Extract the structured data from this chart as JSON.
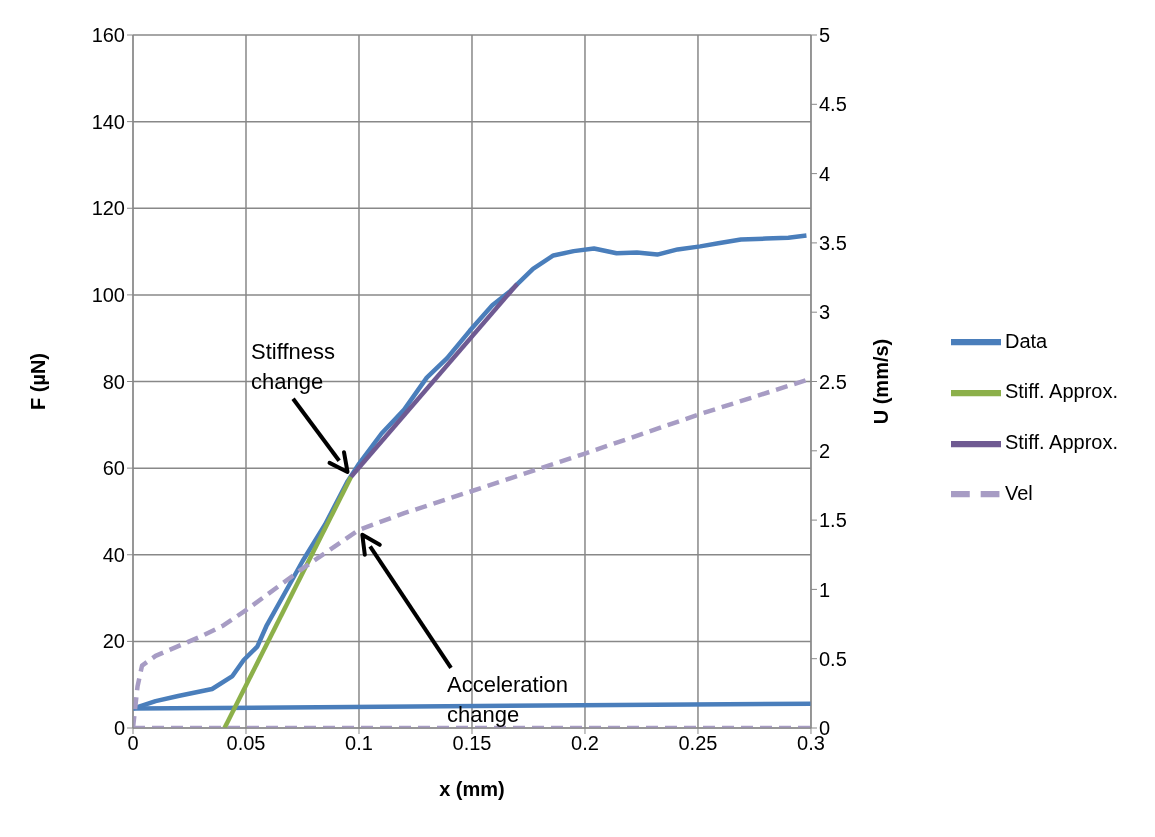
{
  "chart_data": {
    "type": "line",
    "xlabel": "x (mm)",
    "ylabel": "F (µN)",
    "y2label": "U (mm/s)",
    "xlim": [
      0,
      0.3
    ],
    "xticks": [
      0,
      0.05,
      0.1,
      0.15,
      0.2,
      0.25,
      0.3
    ],
    "ylim": [
      0,
      160
    ],
    "yticks": [
      0,
      20,
      40,
      60,
      80,
      100,
      120,
      140,
      160
    ],
    "y2lim": [
      0,
      5
    ],
    "y2ticks": [
      0,
      0.5,
      1,
      1.5,
      2,
      2.5,
      3,
      3.5,
      4,
      4.5,
      5
    ],
    "grid": true,
    "legend": "right",
    "marker": "none",
    "series": [
      {
        "name": "Data",
        "color": "#4a7ebb",
        "line_style": "solid",
        "x": [
          0,
          0.01,
          0.02,
          0.035,
          0.044,
          0.049,
          0.055,
          0.059,
          0.067,
          0.075,
          0.085,
          0.095,
          0.1,
          0.11,
          0.12,
          0.13,
          0.139,
          0.149,
          0.159,
          0.167,
          0.177,
          0.186,
          0.195,
          0.204,
          0.214,
          0.223,
          0.232,
          0.241,
          0.251,
          0.259,
          0.269,
          0.28,
          0.29,
          0.298
        ],
        "values": [
          4.5,
          6.2,
          7.4,
          9,
          12,
          15.7,
          18.8,
          23.5,
          31,
          38.5,
          47,
          57,
          61,
          68,
          73.5,
          80.9,
          85.4,
          91.7,
          97.6,
          100.9,
          106,
          109.1,
          110.1,
          110.7,
          109.6,
          109.8,
          109.3,
          110.5,
          111.2,
          111.9,
          112.8,
          113,
          113.2,
          113.7
        ]
      },
      {
        "color": "#4a7ebb",
        "line_style": "solid",
        "x": [
          0,
          0.3
        ],
        "values": [
          4.5,
          5.6
        ]
      },
      {
        "name": "Stiff. Approx.",
        "color": "#8cb04a",
        "line_style": "solid",
        "x": [
          0.0405,
          0.0965
        ],
        "values": [
          0,
          58
        ]
      },
      {
        "name": "Stiff. Approx.",
        "color": "#6f5a92",
        "line_style": "solid",
        "x": [
          0.0965,
          0.17
        ],
        "values": [
          58,
          102.5
        ]
      },
      {
        "name": "Vel",
        "color": "#a79cc4",
        "line_style": "dashed",
        "axis": "y2",
        "x": [
          0,
          0.002,
          0.004,
          0.01,
          0.03,
          0.04,
          0.05,
          0.075,
          0.1,
          0.12,
          0.15,
          0.2,
          0.25,
          0.3
        ],
        "values": [
          0,
          0.3,
          0.45,
          0.52,
          0.66,
          0.74,
          0.85,
          1.15,
          1.43,
          1.55,
          1.71,
          1.98,
          2.26,
          2.52
        ]
      },
      {
        "color": "#a79cc4",
        "line_style": "dashed",
        "axis": "y2",
        "x": [
          0,
          0.3
        ],
        "values": [
          0,
          0
        ]
      }
    ],
    "annotations": [
      "Stiffness\nchange",
      "Acceleration\nchange"
    ]
  }
}
